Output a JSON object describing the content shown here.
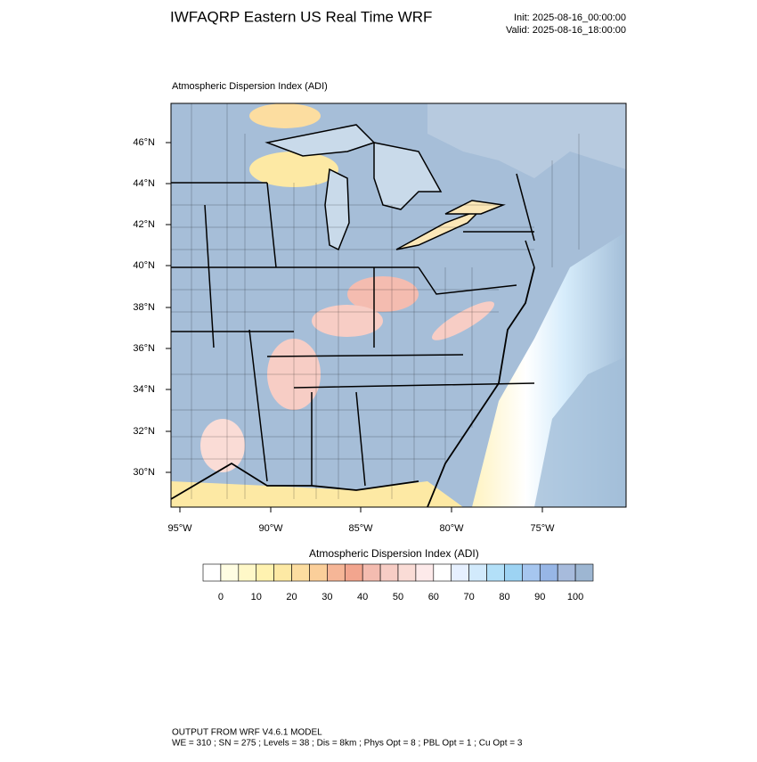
{
  "header": {
    "title": "IWFAQRP Eastern US Real Time WRF",
    "init": "Init: 2025-08-16_00:00:00",
    "valid": "Valid: 2025-08-16_18:00:00"
  },
  "map": {
    "subtitle": "Atmospheric Dispersion Index   (ADI)",
    "lat_labels": [
      "46°N",
      "44°N",
      "42°N",
      "40°N",
      "38°N",
      "36°N",
      "34°N",
      "32°N",
      "30°N"
    ],
    "lon_labels": [
      "95°W",
      "90°W",
      "85°W",
      "80°W",
      "75°W"
    ]
  },
  "colorbar": {
    "title": "Atmospheric Dispersion Index  (ADI)",
    "lim": [
      -5,
      105
    ],
    "ticks": [
      0,
      10,
      20,
      30,
      40,
      50,
      60,
      70,
      80,
      90,
      100
    ],
    "colors": [
      "#ffffff",
      "#fffde2",
      "#fff8c8",
      "#fff2b0",
      "#fde9a4",
      "#fcdda0",
      "#fbcf9a",
      "#f6b697",
      "#f2a58e",
      "#f4bcb0",
      "#f7cdc5",
      "#fadcd6",
      "#fdeaea",
      "#ffffff",
      "#e6f0ff",
      "#d2eafc",
      "#b3e0f8",
      "#9dd3f3",
      "#a6c6ef",
      "#97b6e6",
      "#a7bbdc",
      "#9db6d2"
    ]
  },
  "footer": {
    "line1": "OUTPUT FROM WRF V4.6.1 MODEL",
    "line2": "WE = 310 ; SN = 275 ; Levels = 38 ; Dis = 8km ; Phys Opt = 8 ; PBL Opt = 1 ; Cu Opt = 3"
  }
}
